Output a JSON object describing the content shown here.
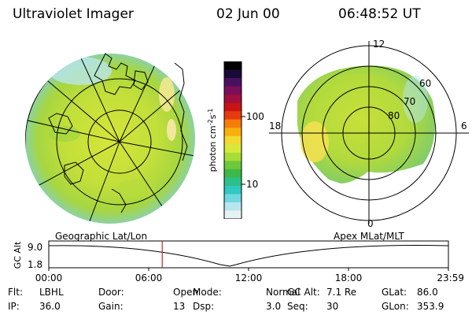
{
  "header": {
    "instrument": "Ultraviolet Imager",
    "date": "02 Jun 00",
    "time": "06:48:52 UT"
  },
  "left_panel": {
    "label": "Geographic Lat/Lon"
  },
  "right_panel": {
    "label": "Apex MLat/MLT",
    "mlt_labels": [
      "12",
      "18",
      "6",
      "0"
    ],
    "lat_labels": [
      "60",
      "70",
      "80"
    ]
  },
  "colorbar": {
    "unit_label": "photon cm",
    "unit_sup1": "-2",
    "unit_mid": "s",
    "unit_sup2": "-1",
    "ticks": [
      "100",
      "10"
    ],
    "colors": [
      "#000000",
      "#1a0a3a",
      "#4a1060",
      "#7a0f5a",
      "#a10f40",
      "#c81414",
      "#e83a10",
      "#f57d0a",
      "#f8b00c",
      "#f2d930",
      "#d8e83a",
      "#a8dc38",
      "#6ec83a",
      "#3eb848",
      "#2cc08a",
      "#30c8c0",
      "#70d8e0",
      "#b8e6ee",
      "#e8f2f6"
    ]
  },
  "altitude_plot": {
    "ylabel": "GC Alt",
    "ymax": "9.0",
    "ymin": "1.8",
    "xticks": [
      "00:00",
      "06:00",
      "12:00",
      "18:00",
      "23:59"
    ],
    "current_time_fraction": 0.2839,
    "marker_color": "#cc2222"
  },
  "info": [
    [
      {
        "label": "Flt:",
        "value": "LBHL"
      },
      {
        "label": "Door:",
        "value": "Open"
      },
      {
        "label": "Mode:",
        "value": "Normal"
      },
      {
        "label": "GC Alt:",
        "value": "7.1 Re"
      },
      {
        "label": "GLat:",
        "value": "86.0"
      }
    ],
    [
      {
        "label": "IP:",
        "value": "36.0"
      },
      {
        "label": "Gain:",
        "value": "13"
      },
      {
        "label": "Dsp:",
        "value": "3.0"
      },
      {
        "label": "Seq:",
        "value": "30"
      },
      {
        "label": "GLon:",
        "value": "353.9"
      }
    ]
  ]
}
